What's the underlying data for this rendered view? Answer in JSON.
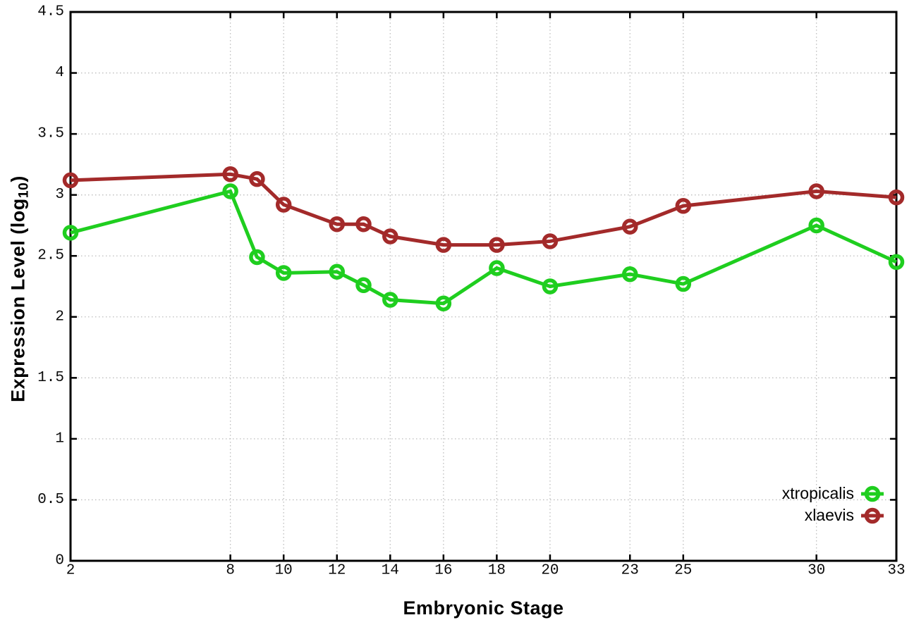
{
  "chart_data": {
    "type": "line",
    "title": "",
    "xlabel": "Embryonic Stage",
    "ylabel": "Expression Level (log10)",
    "ylabel_parts": {
      "main": "Expression Level (log",
      "sub": "10",
      "end": ")"
    },
    "xlim": [
      2,
      33
    ],
    "ylim": [
      0,
      4.5
    ],
    "grid": true,
    "legend_position": "inside-bottom-right",
    "x": [
      2,
      8,
      9,
      10,
      12,
      13,
      14,
      16,
      18,
      20,
      23,
      25,
      30,
      33
    ],
    "xticks": [
      2,
      8,
      10,
      12,
      14,
      16,
      18,
      20,
      23,
      25,
      30,
      33
    ],
    "xtick_labels": [
      "2",
      "8",
      "10",
      "12",
      "14",
      "16",
      "18",
      "20",
      "23",
      "25",
      "30",
      "33"
    ],
    "yticks": [
      0,
      0.5,
      1,
      1.5,
      2,
      2.5,
      3,
      3.5,
      4,
      4.5
    ],
    "ytick_labels": [
      "0",
      "0.5",
      "1",
      "1.5",
      "2",
      "2.5",
      "3",
      "3.5",
      "4",
      "4.5"
    ],
    "series": [
      {
        "name": "xtropicalis",
        "color": "#1FCE1F",
        "values": [
          2.69,
          3.03,
          2.49,
          2.36,
          2.37,
          2.26,
          2.14,
          2.11,
          2.4,
          2.25,
          2.35,
          2.27,
          2.75,
          2.45
        ]
      },
      {
        "name": "xlaevis",
        "color": "#A32A2A",
        "values": [
          3.12,
          3.17,
          3.13,
          2.92,
          2.76,
          2.76,
          2.66,
          2.59,
          2.59,
          2.62,
          2.74,
          2.91,
          3.03,
          2.98
        ]
      }
    ],
    "colors": {
      "grid": "#BDBDBD",
      "axis": "#000000"
    }
  }
}
